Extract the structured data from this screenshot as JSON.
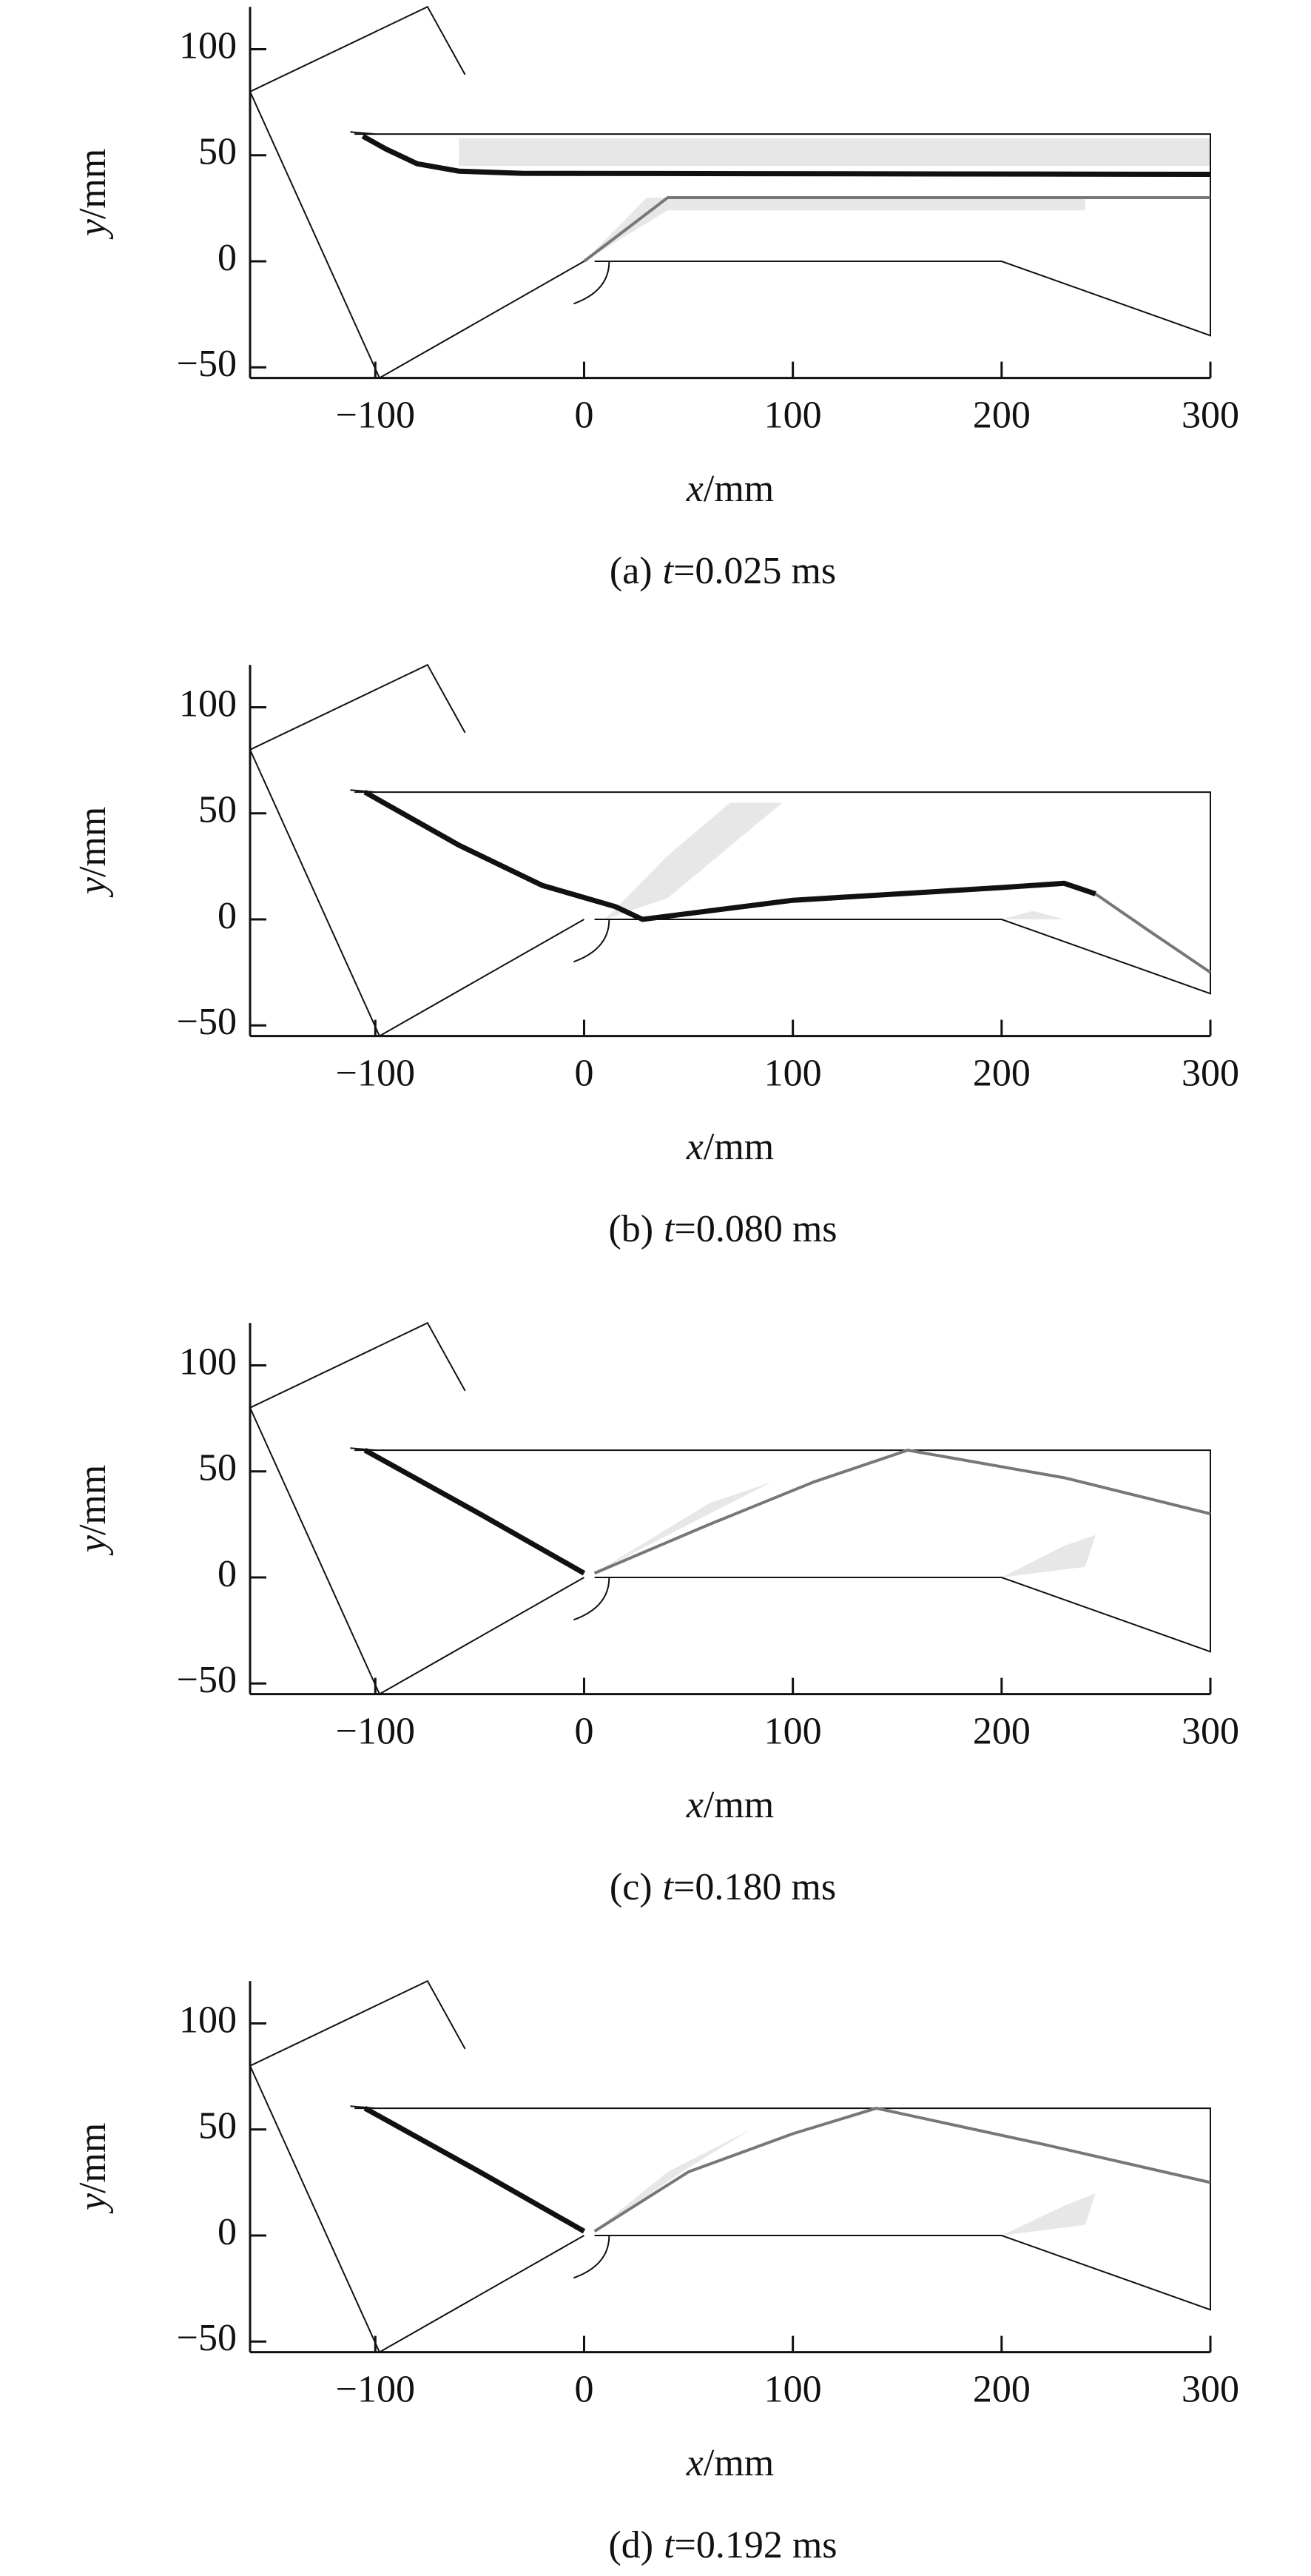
{
  "chart_data": [
    {
      "type": "contour",
      "xlim": [
        -160,
        300
      ],
      "ylim": [
        -55,
        120
      ],
      "xticks": [
        {
          "value": -100,
          "label": "−100"
        },
        0,
        100,
        200,
        300
      ],
      "yticks": [
        {
          "value": -50,
          "label": "−50"
        },
        0,
        50,
        100
      ],
      "xlabel": {
        "symbol": "x",
        "unit": "/mm"
      },
      "ylabel": {
        "symbol": "y",
        "unit": "/mm"
      },
      "caption": {
        "panel": "(a)",
        "variable": "t",
        "value": "=0.025 ms"
      }
    },
    {
      "type": "contour",
      "xlim": [
        -160,
        300
      ],
      "ylim": [
        -55,
        120
      ],
      "xticks": [
        {
          "value": -100,
          "label": "−100"
        },
        0,
        100,
        200,
        300
      ],
      "yticks": [
        {
          "value": -50,
          "label": "−50"
        },
        0,
        50,
        100
      ],
      "xlabel": {
        "symbol": "x",
        "unit": "/mm"
      },
      "ylabel": {
        "symbol": "y",
        "unit": "/mm"
      },
      "caption": {
        "panel": "(b)",
        "variable": "t",
        "value": "=0.080 ms"
      }
    },
    {
      "type": "contour",
      "xlim": [
        -160,
        300
      ],
      "ylim": [
        -55,
        120
      ],
      "xticks": [
        {
          "value": -100,
          "label": "−100"
        },
        0,
        100,
        200,
        300
      ],
      "yticks": [
        {
          "value": -50,
          "label": "−50"
        },
        0,
        50,
        100
      ],
      "xlabel": {
        "symbol": "x",
        "unit": "/mm"
      },
      "ylabel": {
        "symbol": "y",
        "unit": "/mm"
      },
      "caption": {
        "panel": "(c)",
        "variable": "t",
        "value": "=0.180 ms"
      }
    },
    {
      "type": "contour",
      "xlim": [
        -160,
        300
      ],
      "ylim": [
        -55,
        120
      ],
      "xticks": [
        {
          "value": -100,
          "label": "−100"
        },
        0,
        100,
        200,
        300
      ],
      "yticks": [
        {
          "value": -50,
          "label": "−50"
        },
        0,
        50,
        100
      ],
      "xlabel": {
        "symbol": "x",
        "unit": "/mm"
      },
      "ylabel": {
        "symbol": "y",
        "unit": "/mm"
      },
      "caption": {
        "panel": "(d)",
        "variable": "t",
        "value": "=0.192 ms"
      }
    }
  ]
}
